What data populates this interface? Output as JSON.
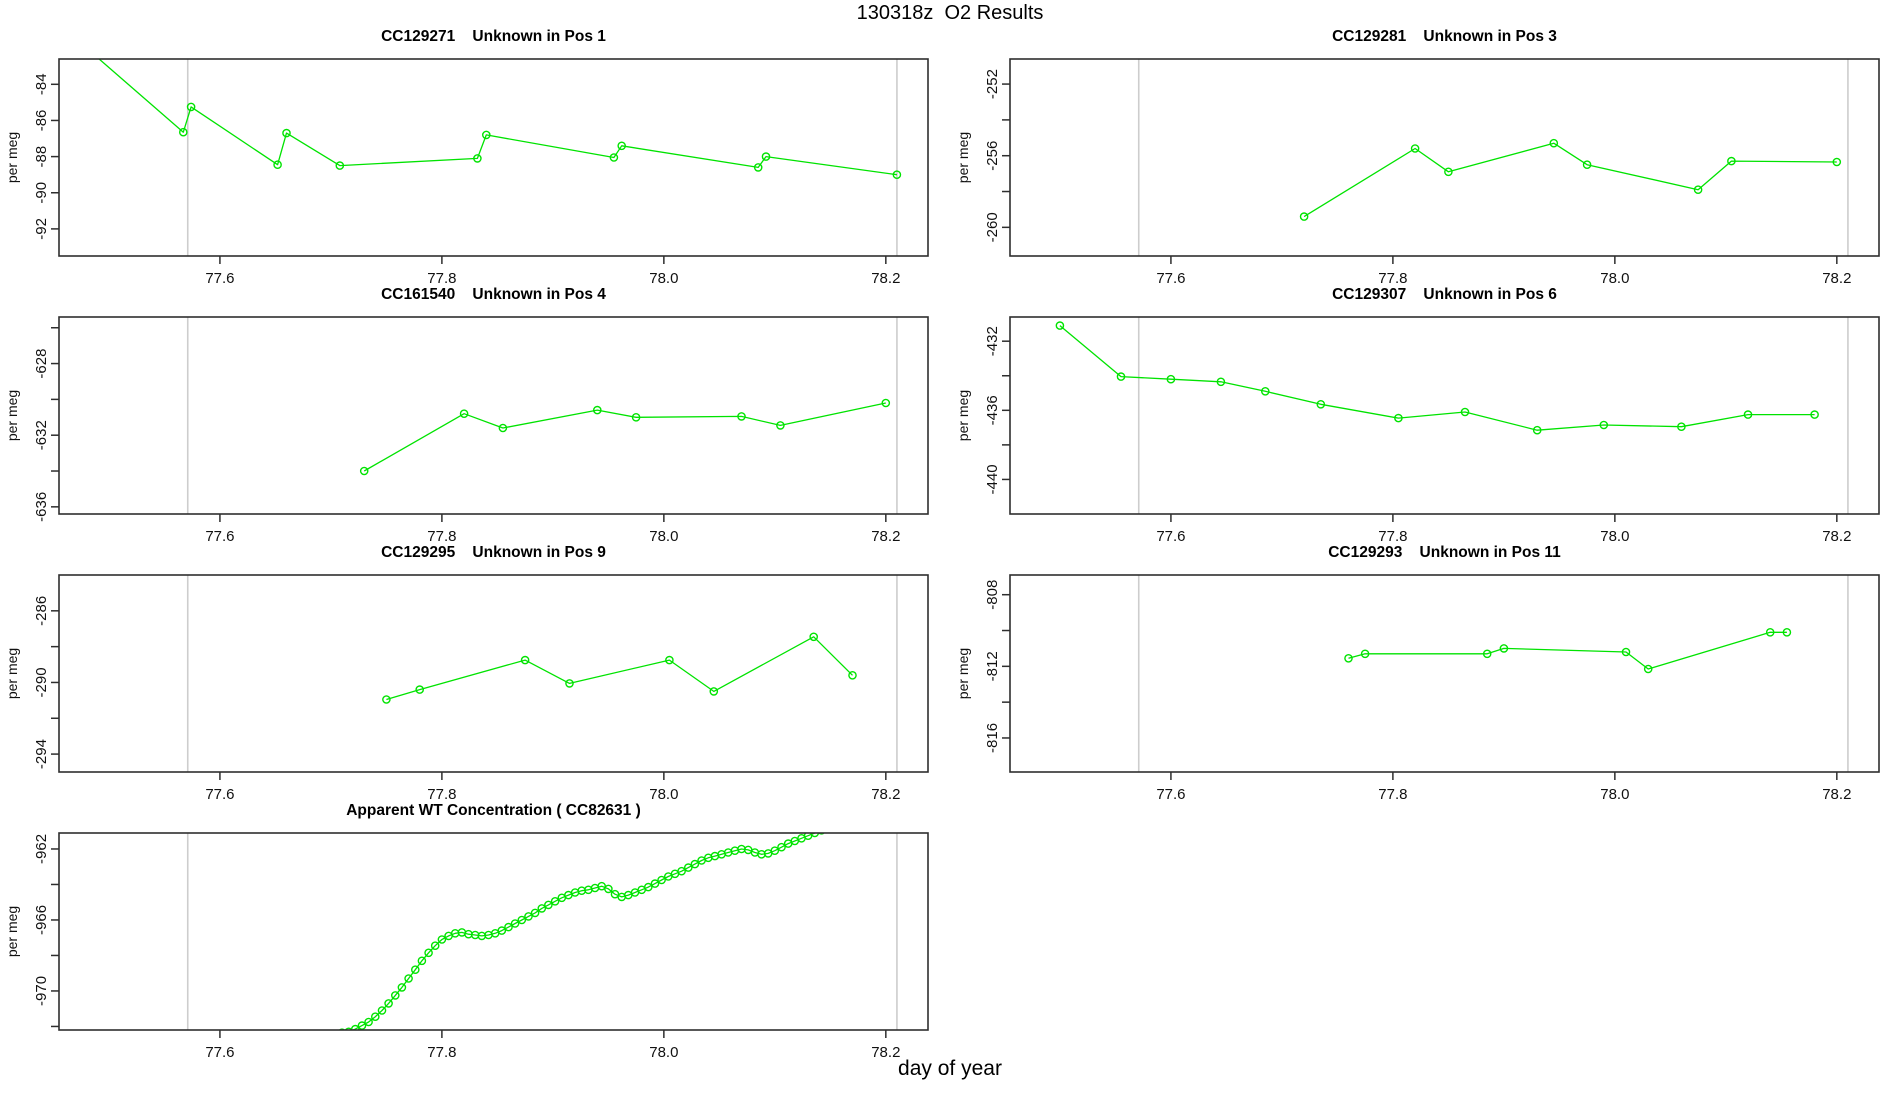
{
  "page": {
    "title": "130318z  O2 Results",
    "xlabel": "day of year"
  },
  "colors": {
    "series": "#00E300",
    "ref_line": "#CDCDCD",
    "frame": "#2E2E2E",
    "tick": "#2E2E2E"
  },
  "axes": {
    "y_label": "per meg",
    "xlim": [
      77.455,
      78.238
    ],
    "x_ticks": [
      {
        "v": 77.6,
        "label": "77.6"
      },
      {
        "v": 77.8,
        "label": "77.8"
      },
      {
        "v": 78.0,
        "label": "78.0"
      },
      {
        "v": 78.2,
        "label": "78.2"
      }
    ],
    "ref_lines": [
      77.571,
      78.21
    ]
  },
  "chart_data": [
    {
      "id": "CC129271",
      "title": "CC129271    Unknown in Pos 1",
      "type": "line",
      "row": 0,
      "col": 0,
      "ylim": [
        -93.5,
        -82.6
      ],
      "y_ticks": [
        {
          "v": -84,
          "label": "-84"
        },
        {
          "v": -86,
          "label": "-86"
        },
        {
          "v": -88,
          "label": "-88"
        },
        {
          "v": -90,
          "label": "-90"
        },
        {
          "v": -92,
          "label": "-92"
        }
      ],
      "y_minor": [],
      "points": [
        [
          77.48,
          -82.0
        ],
        [
          77.567,
          -86.65
        ],
        [
          77.574,
          -85.25
        ],
        [
          77.652,
          -88.45
        ],
        [
          77.66,
          -86.7
        ],
        [
          77.708,
          -88.5
        ],
        [
          77.832,
          -88.1
        ],
        [
          77.84,
          -86.8
        ],
        [
          77.955,
          -88.05
        ],
        [
          77.962,
          -87.4
        ],
        [
          78.085,
          -88.6
        ],
        [
          78.092,
          -88.0
        ],
        [
          78.21,
          -89.0
        ]
      ]
    },
    {
      "id": "CC129281",
      "title": "CC129281    Unknown in Pos 3",
      "type": "line",
      "row": 0,
      "col": 1,
      "ylim": [
        -261.6,
        -250.6
      ],
      "y_ticks": [
        {
          "v": -252,
          "label": "-252"
        },
        {
          "v": -256,
          "label": "-256"
        },
        {
          "v": -260,
          "label": "-260"
        }
      ],
      "y_minor": [
        -254,
        -258
      ],
      "points": [
        [
          77.72,
          -259.4
        ],
        [
          77.82,
          -255.6
        ],
        [
          77.85,
          -256.9
        ],
        [
          77.945,
          -255.3
        ],
        [
          77.975,
          -256.5
        ],
        [
          78.075,
          -257.9
        ],
        [
          78.105,
          -256.3
        ],
        [
          78.2,
          -256.35
        ]
      ]
    },
    {
      "id": "CC161540",
      "title": "CC161540    Unknown in Pos 4",
      "type": "line",
      "row": 1,
      "col": 0,
      "ylim": [
        -636.4,
        -625.4
      ],
      "y_ticks": [
        {
          "v": -628,
          "label": "-628"
        },
        {
          "v": -632,
          "label": "-632"
        },
        {
          "v": -636,
          "label": "-636"
        }
      ],
      "y_minor": [
        -626,
        -630,
        -634
      ],
      "points": [
        [
          77.73,
          -634.0
        ],
        [
          77.82,
          -630.8
        ],
        [
          77.855,
          -631.6
        ],
        [
          77.94,
          -630.6
        ],
        [
          77.975,
          -631.0
        ],
        [
          78.07,
          -630.95
        ],
        [
          78.105,
          -631.45
        ],
        [
          78.2,
          -630.2
        ]
      ]
    },
    {
      "id": "CC129307",
      "title": "CC129307    Unknown in Pos 6",
      "type": "line",
      "row": 1,
      "col": 1,
      "ylim": [
        -442.0,
        -430.6
      ],
      "y_ticks": [
        {
          "v": -432,
          "label": "-432"
        },
        {
          "v": -436,
          "label": "-436"
        },
        {
          "v": -440,
          "label": "-440"
        }
      ],
      "y_minor": [
        -434,
        -438
      ],
      "points": [
        [
          77.5,
          -431.1
        ],
        [
          77.555,
          -434.05
        ],
        [
          77.6,
          -434.2
        ],
        [
          77.645,
          -434.35
        ],
        [
          77.685,
          -434.9
        ],
        [
          77.735,
          -435.65
        ],
        [
          77.805,
          -436.45
        ],
        [
          77.865,
          -436.1
        ],
        [
          77.93,
          -437.15
        ],
        [
          77.99,
          -436.85
        ],
        [
          78.06,
          -436.95
        ],
        [
          78.12,
          -436.25
        ],
        [
          78.18,
          -436.25
        ]
      ]
    },
    {
      "id": "CC129295",
      "title": "CC129295    Unknown in Pos 9",
      "type": "line",
      "row": 2,
      "col": 0,
      "ylim": [
        -295.0,
        -284.0
      ],
      "y_ticks": [
        {
          "v": -286,
          "label": "-286"
        },
        {
          "v": -290,
          "label": "-290"
        },
        {
          "v": -294,
          "label": "-294"
        }
      ],
      "y_minor": [
        -288,
        -292
      ],
      "points": [
        [
          77.75,
          -290.95
        ],
        [
          77.78,
          -290.4
        ],
        [
          77.875,
          -288.75
        ],
        [
          77.915,
          -290.05
        ],
        [
          78.005,
          -288.75
        ],
        [
          78.045,
          -290.5
        ],
        [
          78.135,
          -287.45
        ],
        [
          78.17,
          -289.6
        ]
      ]
    },
    {
      "id": "CC129293",
      "title": "CC129293    Unknown in Pos 11",
      "type": "line",
      "row": 2,
      "col": 1,
      "ylim": [
        -817.9,
        -806.9
      ],
      "y_ticks": [
        {
          "v": -808,
          "label": "-808"
        },
        {
          "v": -812,
          "label": "-812"
        },
        {
          "v": -816,
          "label": "-816"
        }
      ],
      "y_minor": [
        -810,
        -814
      ],
      "points": [
        [
          77.76,
          -811.55
        ],
        [
          77.775,
          -811.3
        ],
        [
          77.885,
          -811.3
        ],
        [
          77.9,
          -811.0
        ],
        [
          78.01,
          -811.2
        ],
        [
          78.03,
          -812.15
        ],
        [
          78.14,
          -810.1
        ],
        [
          78.155,
          -810.1
        ]
      ]
    },
    {
      "id": "CC82631",
      "title": "Apparent WT Concentration ( CC82631 )",
      "type": "line",
      "row": 3,
      "col": 0,
      "ylim": [
        -972.2,
        -961.1
      ],
      "y_ticks": [
        {
          "v": -962,
          "label": "-962"
        },
        {
          "v": -966,
          "label": "-966"
        },
        {
          "v": -970,
          "label": "-970"
        }
      ],
      "y_minor": [
        -964,
        -968,
        -972
      ],
      "points": [
        [
          77.71,
          -972.35
        ],
        [
          77.716,
          -972.3
        ],
        [
          77.722,
          -972.15
        ],
        [
          77.728,
          -971.95
        ],
        [
          77.734,
          -971.75
        ],
        [
          77.74,
          -971.45
        ],
        [
          77.746,
          -971.1
        ],
        [
          77.752,
          -970.7
        ],
        [
          77.758,
          -970.25
        ],
        [
          77.764,
          -969.8
        ],
        [
          77.77,
          -969.3
        ],
        [
          77.776,
          -968.8
        ],
        [
          77.782,
          -968.3
        ],
        [
          77.788,
          -967.85
        ],
        [
          77.794,
          -967.45
        ],
        [
          77.8,
          -967.1
        ],
        [
          77.806,
          -966.9
        ],
        [
          77.812,
          -966.75
        ],
        [
          77.818,
          -966.7
        ],
        [
          77.824,
          -966.8
        ],
        [
          77.83,
          -966.85
        ],
        [
          77.836,
          -966.9
        ],
        [
          77.842,
          -966.85
        ],
        [
          77.848,
          -966.75
        ],
        [
          77.854,
          -966.6
        ],
        [
          77.86,
          -966.4
        ],
        [
          77.866,
          -966.2
        ],
        [
          77.872,
          -966.0
        ],
        [
          77.878,
          -965.8
        ],
        [
          77.884,
          -965.6
        ],
        [
          77.89,
          -965.35
        ],
        [
          77.896,
          -965.15
        ],
        [
          77.902,
          -964.95
        ],
        [
          77.908,
          -964.75
        ],
        [
          77.914,
          -964.6
        ],
        [
          77.92,
          -964.45
        ],
        [
          77.926,
          -964.35
        ],
        [
          77.932,
          -964.3
        ],
        [
          77.938,
          -964.2
        ],
        [
          77.944,
          -964.1
        ],
        [
          77.95,
          -964.25
        ],
        [
          77.956,
          -964.55
        ],
        [
          77.962,
          -964.7
        ],
        [
          77.968,
          -964.6
        ],
        [
          77.974,
          -964.45
        ],
        [
          77.98,
          -964.3
        ],
        [
          77.986,
          -964.15
        ],
        [
          77.992,
          -963.95
        ],
        [
          77.998,
          -963.75
        ],
        [
          78.004,
          -963.55
        ],
        [
          78.01,
          -963.4
        ],
        [
          78.016,
          -963.25
        ],
        [
          78.022,
          -963.05
        ],
        [
          78.028,
          -962.85
        ],
        [
          78.034,
          -962.65
        ],
        [
          78.04,
          -962.5
        ],
        [
          78.046,
          -962.4
        ],
        [
          78.052,
          -962.3
        ],
        [
          78.058,
          -962.2
        ],
        [
          78.064,
          -962.1
        ],
        [
          78.07,
          -962.0
        ],
        [
          78.076,
          -962.05
        ],
        [
          78.082,
          -962.2
        ],
        [
          78.088,
          -962.3
        ],
        [
          78.094,
          -962.25
        ],
        [
          78.1,
          -962.1
        ],
        [
          78.106,
          -961.9
        ],
        [
          78.112,
          -961.7
        ],
        [
          78.118,
          -961.55
        ],
        [
          78.124,
          -961.4
        ],
        [
          78.13,
          -961.25
        ],
        [
          78.136,
          -961.1
        ],
        [
          78.142,
          -960.95
        ],
        [
          78.148,
          -960.85
        ],
        [
          78.154,
          -960.75
        ],
        [
          78.16,
          -960.65
        ],
        [
          78.166,
          -960.55
        ]
      ]
    }
  ]
}
